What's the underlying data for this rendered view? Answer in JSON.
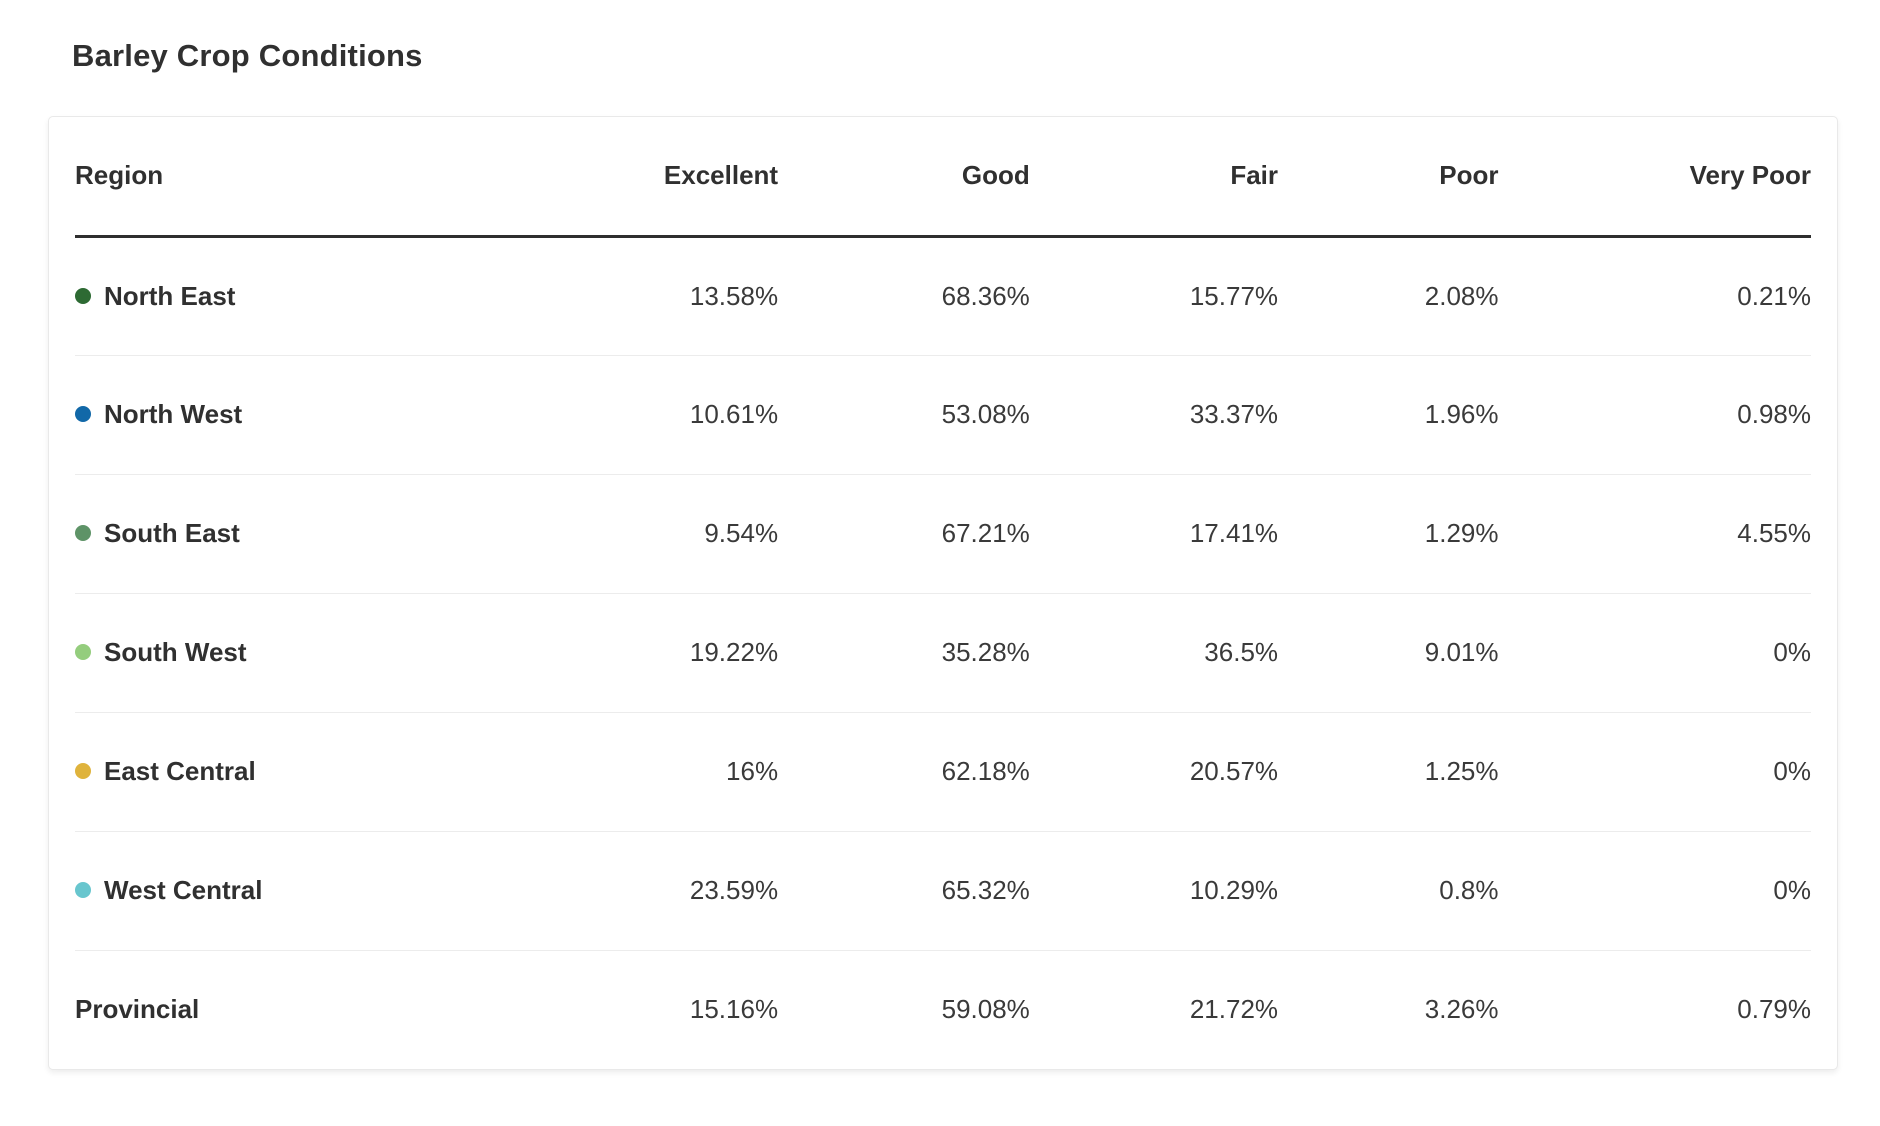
{
  "page": {
    "title": "Barley Crop Conditions"
  },
  "table": {
    "columns": [
      {
        "label": "Region",
        "align": "left"
      },
      {
        "label": "Excellent",
        "align": "right"
      },
      {
        "label": "Good",
        "align": "right"
      },
      {
        "label": "Fair",
        "align": "right"
      },
      {
        "label": "Poor",
        "align": "right"
      },
      {
        "label": "Very Poor",
        "align": "right"
      }
    ],
    "rows": [
      {
        "region": "North East",
        "dot_color": "#2d6a33",
        "values": [
          "13.58%",
          "68.36%",
          "15.77%",
          "2.08%",
          "0.21%"
        ]
      },
      {
        "region": "North West",
        "dot_color": "#1168a8",
        "values": [
          "10.61%",
          "53.08%",
          "33.37%",
          "1.96%",
          "0.98%"
        ]
      },
      {
        "region": "South East",
        "dot_color": "#5e9367",
        "values": [
          "9.54%",
          "67.21%",
          "17.41%",
          "1.29%",
          "4.55%"
        ]
      },
      {
        "region": "South West",
        "dot_color": "#94cd7d",
        "values": [
          "19.22%",
          "35.28%",
          "36.5%",
          "9.01%",
          "0%"
        ]
      },
      {
        "region": "East Central",
        "dot_color": "#dfb33c",
        "values": [
          "16%",
          "62.18%",
          "20.57%",
          "1.25%",
          "0%"
        ]
      },
      {
        "region": "West Central",
        "dot_color": "#68c6ce",
        "values": [
          "23.59%",
          "65.32%",
          "10.29%",
          "0.8%",
          "0%"
        ]
      },
      {
        "region": "Provincial",
        "dot_color": null,
        "values": [
          "15.16%",
          "59.08%",
          "21.72%",
          "3.26%",
          "0.79%"
        ]
      }
    ]
  },
  "colors": {
    "header_rule": "#2e2e2e",
    "row_divider": "#ececec",
    "text": "#3a3a3a",
    "card_border": "#e9e9e9"
  },
  "chart_data": {
    "type": "table",
    "title": "Barley Crop Conditions",
    "categories": [
      "Excellent",
      "Good",
      "Fair",
      "Poor",
      "Very Poor"
    ],
    "series": [
      {
        "name": "North East",
        "color": "#2d6a33",
        "values": [
          13.58,
          68.36,
          15.77,
          2.08,
          0.21
        ]
      },
      {
        "name": "North West",
        "color": "#1168a8",
        "values": [
          10.61,
          53.08,
          33.37,
          1.96,
          0.98
        ]
      },
      {
        "name": "South East",
        "color": "#5e9367",
        "values": [
          9.54,
          67.21,
          17.41,
          1.29,
          4.55
        ]
      },
      {
        "name": "South West",
        "color": "#94cd7d",
        "values": [
          19.22,
          35.28,
          36.5,
          9.01,
          0
        ]
      },
      {
        "name": "East Central",
        "color": "#dfb33c",
        "values": [
          16,
          62.18,
          20.57,
          1.25,
          0
        ]
      },
      {
        "name": "West Central",
        "color": "#68c6ce",
        "values": [
          23.59,
          65.32,
          10.29,
          0.8,
          0
        ]
      },
      {
        "name": "Provincial",
        "color": null,
        "values": [
          15.16,
          59.08,
          21.72,
          3.26,
          0.79
        ]
      }
    ],
    "value_format": "percent",
    "legend_position": "inline-row-dots"
  }
}
